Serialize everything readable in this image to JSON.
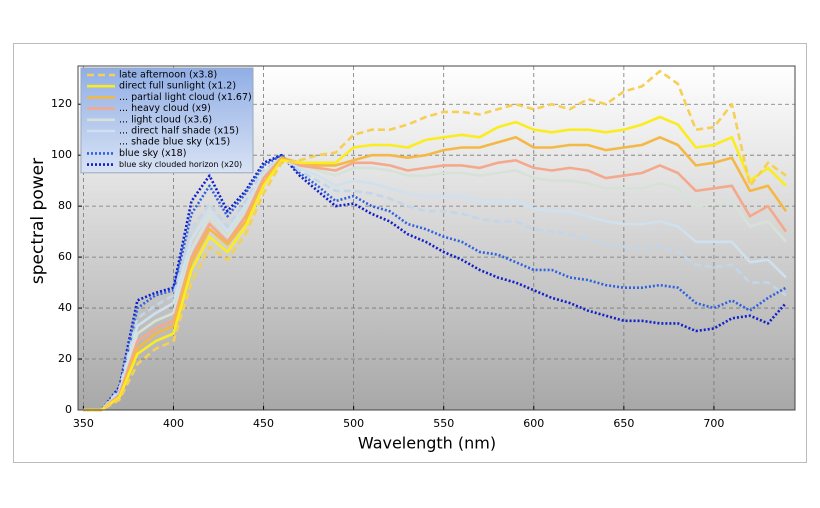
{
  "chart_data": {
    "type": "line",
    "xlabel": "Wavelength (nm)",
    "ylabel": "spectral power",
    "x": [
      350,
      360,
      370,
      380,
      390,
      400,
      410,
      420,
      430,
      440,
      450,
      460,
      470,
      480,
      490,
      500,
      510,
      520,
      530,
      540,
      550,
      560,
      570,
      580,
      590,
      600,
      610,
      620,
      630,
      640,
      650,
      660,
      670,
      680,
      690,
      700,
      710,
      720,
      730,
      740
    ],
    "xlim": [
      347,
      745
    ],
    "ylim": [
      0,
      135
    ],
    "xticks": [
      350,
      400,
      450,
      500,
      550,
      600,
      650,
      700
    ],
    "yticks": [
      0,
      20,
      40,
      60,
      80,
      100,
      120
    ],
    "grid": true,
    "legend": "upper left",
    "series": [
      {
        "name": "late afternoon (x3.8)",
        "color": "#f6cf55",
        "dash": "dashed",
        "values": [
          0,
          0,
          4,
          18,
          24,
          27,
          50,
          64,
          59,
          69,
          85,
          97,
          98,
          100,
          101,
          108,
          110,
          110,
          112,
          115,
          117,
          117,
          116,
          118,
          120,
          118,
          120,
          118,
          122,
          120,
          125,
          127,
          133,
          128,
          110,
          111,
          120,
          88,
          97,
          92
        ]
      },
      {
        "name": "direct full sunlight (x1.2)",
        "color": "#fbec20",
        "dash": "solid",
        "values": [
          0,
          0,
          5,
          22,
          27,
          30,
          55,
          68,
          62,
          72,
          88,
          98,
          97,
          97,
          97,
          103,
          104,
          104,
          103,
          106,
          107,
          108,
          107,
          111,
          113,
          110,
          109,
          110,
          110,
          109,
          110,
          112,
          115,
          112,
          103,
          104,
          107,
          90,
          95,
          88
        ]
      },
      {
        "name": "... partial light cloud (x1.67)",
        "color": "#f4b847",
        "dash": "solid",
        "values": [
          0,
          0,
          5,
          24,
          30,
          33,
          58,
          71,
          65,
          74,
          89,
          99,
          97,
          96,
          96,
          98,
          100,
          100,
          99,
          100,
          102,
          103,
          103,
          105,
          107,
          103,
          103,
          104,
          104,
          102,
          103,
          104,
          107,
          104,
          96,
          97,
          99,
          86,
          88,
          78
        ]
      },
      {
        "name": "... heavy cloud (x9)",
        "color": "#f4a98c",
        "dash": "solid",
        "values": [
          0,
          0,
          6,
          27,
          32,
          35,
          60,
          73,
          66,
          76,
          91,
          99,
          96,
          95,
          94,
          97,
          97,
          96,
          94,
          95,
          96,
          96,
          95,
          97,
          98,
          95,
          94,
          95,
          94,
          91,
          92,
          93,
          96,
          93,
          86,
          87,
          88,
          76,
          80,
          70
        ]
      },
      {
        "name": "... light cloud (x3.6)",
        "color": "#d6e2d8",
        "dash": "solid",
        "values": [
          0,
          0,
          6,
          30,
          35,
          38,
          63,
          76,
          68,
          78,
          92,
          99,
          96,
          94,
          92,
          95,
          95,
          94,
          92,
          92,
          93,
          93,
          92,
          93,
          94,
          91,
          90,
          90,
          89,
          87,
          87,
          87,
          89,
          87,
          80,
          81,
          82,
          72,
          74,
          66
        ]
      },
      {
        "name": "... direct half shade (x15)",
        "color": "#cfe0ee",
        "dash": "solid",
        "values": [
          0,
          0,
          7,
          33,
          38,
          42,
          67,
          78,
          70,
          80,
          93,
          99,
          95,
          92,
          88,
          90,
          89,
          87,
          85,
          84,
          84,
          84,
          82,
          82,
          82,
          79,
          78,
          78,
          76,
          74,
          73,
          73,
          74,
          72,
          66,
          66,
          66,
          58,
          59,
          52
        ]
      },
      {
        "name": "... shade blue sky (x15)",
        "color": "#c2d6ea",
        "dash": "dashed",
        "values": [
          0,
          0,
          8,
          36,
          41,
          45,
          71,
          81,
          72,
          82,
          94,
          99,
          94,
          90,
          86,
          86,
          85,
          83,
          80,
          78,
          78,
          77,
          75,
          74,
          74,
          71,
          70,
          69,
          67,
          65,
          64,
          63,
          64,
          62,
          57,
          56,
          57,
          50,
          50,
          45
        ]
      },
      {
        "name": "blue sky (x18)",
        "color": "#2f62e0",
        "dash": "dotted",
        "values": [
          0,
          0,
          8,
          40,
          45,
          47,
          77,
          88,
          76,
          85,
          96,
          100,
          93,
          88,
          82,
          84,
          80,
          78,
          73,
          71,
          68,
          66,
          62,
          61,
          58,
          55,
          55,
          52,
          51,
          49,
          48,
          48,
          49,
          48,
          42,
          40,
          43,
          39,
          44,
          48
        ]
      },
      {
        "name": "blue sky clouded horizon (x20)",
        "color": "#1020c8",
        "dash": "dotted",
        "values": [
          0,
          0,
          9,
          43,
          46,
          48,
          82,
          92,
          78,
          86,
          97,
          100,
          92,
          86,
          80,
          81,
          77,
          74,
          69,
          66,
          62,
          59,
          55,
          52,
          50,
          47,
          44,
          42,
          39,
          37,
          35,
          35,
          34,
          34,
          31,
          32,
          36,
          37,
          34,
          42
        ]
      }
    ]
  }
}
